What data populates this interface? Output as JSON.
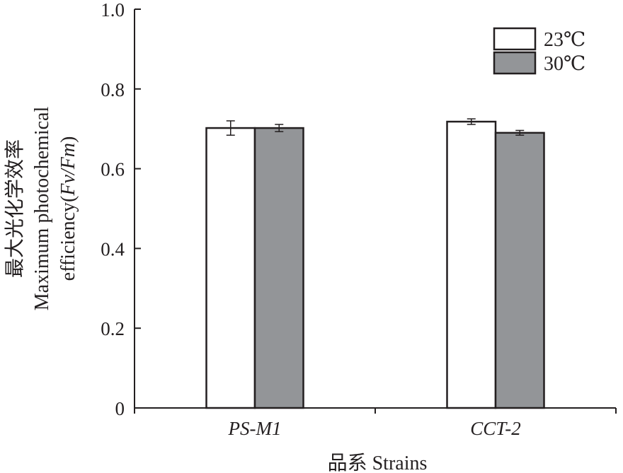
{
  "chart_data": {
    "type": "bar",
    "title": "",
    "categories": [
      "PS-M1",
      "CCT-2"
    ],
    "series": [
      {
        "name": "23℃",
        "values": [
          0.702,
          0.718
        ],
        "errors": [
          0.018,
          0.007
        ],
        "color": "#ffffff"
      },
      {
        "name": "30℃",
        "values": [
          0.702,
          0.69
        ],
        "errors": [
          0.009,
          0.006
        ],
        "color": "#939598"
      }
    ],
    "xlabel": "品系 Strains",
    "ylabel_lines": [
      "最大光化学效率",
      "Maximum photochemical",
      "efficiency("
    ],
    "ylabel_italic": "Fv/Fm",
    "ylabel_close": ")",
    "ylim": [
      0,
      1.0
    ],
    "yticks": [
      0,
      0.2,
      0.4,
      0.6,
      0.8,
      1.0
    ],
    "ytick_labels": [
      "0",
      "0.2",
      "0.4",
      "0.6",
      "0.8",
      "1.0"
    ],
    "legend_position": "top-right",
    "grid": false
  }
}
